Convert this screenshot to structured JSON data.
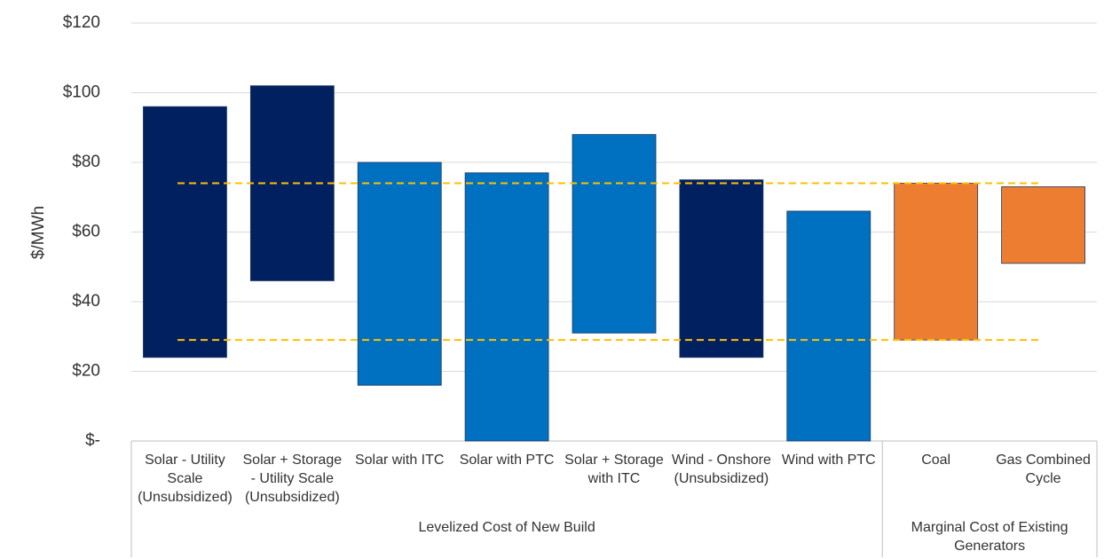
{
  "chart_data": {
    "type": "floating_bar",
    "y_label": "$/MWh",
    "ylim": [
      0,
      120
    ],
    "yticks": [
      {
        "value": 0,
        "label": "$-"
      },
      {
        "value": 20,
        "label": "$20"
      },
      {
        "value": 40,
        "label": "$40"
      },
      {
        "value": 60,
        "label": "$60"
      },
      {
        "value": 80,
        "label": "$80"
      },
      {
        "value": 100,
        "label": "$100"
      },
      {
        "value": 120,
        "label": "$120"
      }
    ],
    "grid": true,
    "groups": [
      {
        "label": "Levelized Cost of New Build",
        "categories": [
          "Solar - Utility Scale (Unsubsidized)",
          "Solar + Storage - Utility Scale (Unsubsidized)",
          "Solar with ITC",
          "Solar with PTC",
          "Solar + Storage with ITC",
          "Wind - Onshore (Unsubsidized)",
          "Wind with PTC"
        ],
        "lows": [
          24,
          46,
          16,
          0,
          31,
          24,
          0
        ],
        "highs": [
          96,
          102,
          80,
          77,
          88,
          75,
          66
        ],
        "colors": [
          "#002060",
          "#002060",
          "#0070c0",
          "#0070c0",
          "#0070c0",
          "#002060",
          "#0070c0"
        ]
      },
      {
        "label": "Marginal Cost of Existing Generators",
        "categories": [
          "Coal",
          "Gas Combined Cycle"
        ],
        "lows": [
          29,
          51
        ],
        "highs": [
          74,
          73
        ],
        "colors": [
          "#ed7d31",
          "#ed7d31"
        ]
      }
    ],
    "reference_lines": [
      74,
      29
    ],
    "reference_color": "#ffc000"
  }
}
